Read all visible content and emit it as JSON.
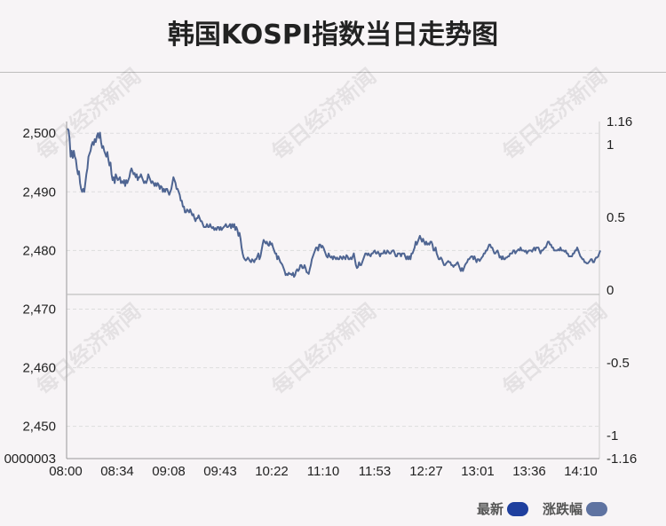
{
  "title": "韩国KOSPI指数当日走势图",
  "watermark": "每日经济新闻",
  "legend": [
    {
      "label": "最新",
      "color": "#1f3f9e"
    },
    {
      "label": "涨跌幅",
      "color": "#5f73a1"
    }
  ],
  "colors": {
    "line": "#4f6592",
    "background": "#f7f4f6",
    "grid": "#dddddd"
  },
  "chart_data": {
    "type": "line",
    "title": "韩国KOSPI指数当日走势图",
    "x_ticks": [
      "08:00",
      "08:34",
      "09:08",
      "09:43",
      "10:22",
      "11:10",
      "11:53",
      "12:27",
      "13:01",
      "13:36",
      "14:10"
    ],
    "y_left_ticks": [
      "2,500",
      "2,490",
      "2,480",
      "2,470",
      "2,460",
      "2,450",
      "0000003"
    ],
    "y_left_ylim": [
      2444.5,
      2502.0
    ],
    "y_right_ticks": [
      "1.16",
      "1",
      "0.5",
      "0",
      "-0.5",
      "-1",
      "-1.16"
    ],
    "y_right_ylim": [
      -1.16,
      1.16
    ],
    "baseline": 2472.5,
    "grid": true,
    "series": [
      {
        "values": [
          2500.8,
          2500.5,
          2499,
          2496,
          2497,
          2495.8,
          2497,
          2496,
          2495.5,
          2494,
          2493,
          2493.5,
          2491.5,
          2490.5,
          2490,
          2490.5,
          2490,
          2491.5,
          2493,
          2494,
          2496,
          2496.5,
          2497,
          2498,
          2498.5,
          2498,
          2499,
          2498.5,
          2499.5,
          2500,
          2499.2,
          2500.1,
          2498.5,
          2497.5,
          2497.8,
          2497,
          2496.5,
          2496,
          2496.8,
          2495.5,
          2494.5,
          2495,
          2493,
          2492,
          2492.5,
          2491.5,
          2493,
          2492.5,
          2492,
          2492.2,
          2492.5,
          2491.5,
          2491.8,
          2491.5,
          2492,
          2491,
          2492,
          2491.5,
          2492,
          2492.5,
          2493.5,
          2494,
          2493.5,
          2493,
          2493.2,
          2492.5,
          2493,
          2492,
          2492.5,
          2492.5,
          2493,
          2492.5,
          2492,
          2491.5,
          2491.8,
          2491.5,
          2492,
          2493,
          2492.5,
          2492,
          2491.5,
          2491.8,
          2491.5,
          2491,
          2491.5,
          2491,
          2491.5,
          2491.2,
          2490.5,
          2491,
          2490.8,
          2490,
          2490.5,
          2490,
          2490.5,
          2490.5,
          2490,
          2489.5,
          2490,
          2490.5,
          2491.5,
          2492.5,
          2492,
          2491.5,
          2490.5,
          2490.5,
          2490,
          2489.5,
          2488.5,
          2488.5,
          2487.5,
          2487.5,
          2486.5,
          2486.5,
          2487,
          2486.8,
          2486.5,
          2487,
          2486.5,
          2486,
          2486.2,
          2485.5,
          2485,
          2485.5,
          2485.5,
          2486,
          2485.5,
          2485,
          2485,
          2484.5,
          2484,
          2484,
          2484,
          2484.5,
          2484,
          2484,
          2484.5,
          2484,
          2483.8,
          2484,
          2483.5,
          2483.8,
          2483.5,
          2484,
          2484,
          2483.5,
          2484,
          2483.5,
          2483.8,
          2484,
          2484.2,
          2484.5,
          2484,
          2484,
          2484.2,
          2484.5,
          2483.8,
          2484.5,
          2484,
          2484.5,
          2483.5,
          2484,
          2483.5,
          2482.5,
          2483,
          2482,
          2480.5,
          2479.5,
          2478.8,
          2478.5,
          2478.3,
          2478.5,
          2478.8,
          2478.5,
          2478.2,
          2478,
          2478.5,
          2478.3,
          2478,
          2478.5,
          2478.5,
          2479,
          2479.5,
          2478.5,
          2479,
          2480,
          2481,
          2481.8,
          2481.5,
          2481.2,
          2481.5,
          2481,
          2480.8,
          2481.5,
          2481,
          2481.2,
          2480.5,
          2480,
          2479.5,
          2479.5,
          2478.5,
          2479,
          2478.5,
          2478,
          2477.8,
          2477.5,
          2477,
          2476.5,
          2475.8,
          2476,
          2475.8,
          2476.2,
          2476,
          2476,
          2475.8,
          2476.2,
          2475.5,
          2475.8,
          2476.5,
          2476.8,
          2476.5,
          2476.8,
          2477.5,
          2477.5,
          2477,
          2477,
          2477.5,
          2477,
          2476.3,
          2476.2,
          2476,
          2476.8,
          2477.5,
          2478.5,
          2479,
          2479.5,
          2480,
          2480.5,
          2480.5,
          2480,
          2481,
          2481,
          2480.5,
          2480.8,
          2480.5,
          2480,
          2479.5,
          2479,
          2478.8,
          2479.5,
          2479,
          2478.8,
          2479,
          2478.5,
          2479,
          2478.8,
          2478.5,
          2478.8,
          2478.5,
          2478.5,
          2479,
          2478.8,
          2478.5,
          2479,
          2478.8,
          2478.5,
          2479.2,
          2479,
          2478.5,
          2478.5,
          2478.8,
          2478.5,
          2479,
          2479.5,
          2478.5,
          2477.5,
          2477,
          2477.2,
          2478,
          2477.5,
          2477.5,
          2478,
          2478.5,
          2479,
          2479.5,
          2479.5,
          2479.2,
          2479.5,
          2479.2,
          2479,
          2479.5,
          2479.5,
          2479.8,
          2480,
          2479.5,
          2479.5,
          2479.8,
          2479.5,
          2479,
          2479.5,
          2479.5,
          2479.5,
          2480,
          2479.5,
          2479.5,
          2480,
          2479.8,
          2479.5,
          2479.5,
          2479.8,
          2480,
          2480,
          2479.5,
          2479,
          2479,
          2479.5,
          2479.5,
          2479.5,
          2479,
          2479.5,
          2479.5,
          2479.5,
          2479,
          2478.5,
          2479,
          2478.5,
          2479,
          2478.5,
          2479.5,
          2479.5,
          2480,
          2480.5,
          2481.5,
          2481,
          2481.5,
          2482,
          2482.5,
          2482,
          2481.5,
          2482,
          2481.5,
          2481,
          2481.5,
          2481,
          2481.2,
          2481,
          2481.5,
          2481.5,
          2481,
          2480,
          2480,
          2480.5,
          2479.5,
          2479,
          2478.5,
          2478.5,
          2478.8,
          2478.5,
          2478,
          2477.5,
          2477.5,
          2477.8,
          2478,
          2478.2,
          2478,
          2478,
          2477.5,
          2477.5,
          2477.2,
          2477.5,
          2477.5,
          2477.8,
          2478,
          2477.5,
          2477,
          2476.5,
          2477,
          2476.5,
          2477,
          2477.5,
          2477.8,
          2478,
          2478.5,
          2478.5,
          2478.8,
          2479,
          2479,
          2478.5,
          2479,
          2478.5,
          2478,
          2478.5,
          2478.5,
          2478.2,
          2478.5,
          2478.8,
          2479,
          2479.5,
          2479.5,
          2480,
          2480,
          2480.5,
          2481,
          2481,
          2480.5,
          2480.5,
          2480,
          2479.5,
          2479.5,
          2479.8,
          2480,
          2479.5,
          2478.8,
          2479,
          2478.5,
          2479,
          2478.5,
          2478.5,
          2478.8,
          2478.8,
          2479,
          2479,
          2479.5,
          2479.5,
          2479.5,
          2480,
          2480,
          2479.5,
          2479.8,
          2480,
          2480.2,
          2480,
          2480.5,
          2480,
          2480,
          2480,
          2479.8,
          2480,
          2479.5,
          2479.8,
          2480,
          2480,
          2480,
          2479.8,
          2480.2,
          2480.5,
          2480,
          2480.5,
          2480.5,
          2480.5,
          2480,
          2479.5,
          2480,
          2480,
          2480.2,
          2480.5,
          2480.5,
          2481,
          2481.5,
          2481.5,
          2481,
          2481,
          2480.5,
          2480.5,
          2480,
          2480,
          2480,
          2480,
          2480.2,
          2480,
          2480.5,
          2480,
          2480,
          2480,
          2479.8,
          2480,
          2479.5,
          2479.5,
          2479,
          2479,
          2479,
          2479,
          2479.5,
          2479.5,
          2480,
          2480,
          2480.5,
          2480,
          2479.5,
          2479,
          2478.8,
          2478.5,
          2478.5,
          2478,
          2478,
          2477.8,
          2477.8,
          2478,
          2478.2,
          2478.5,
          2478.5,
          2478,
          2478,
          2478.5,
          2478.8,
          2478.8,
          2479,
          2479.5,
          2480
        ]
      }
    ]
  }
}
